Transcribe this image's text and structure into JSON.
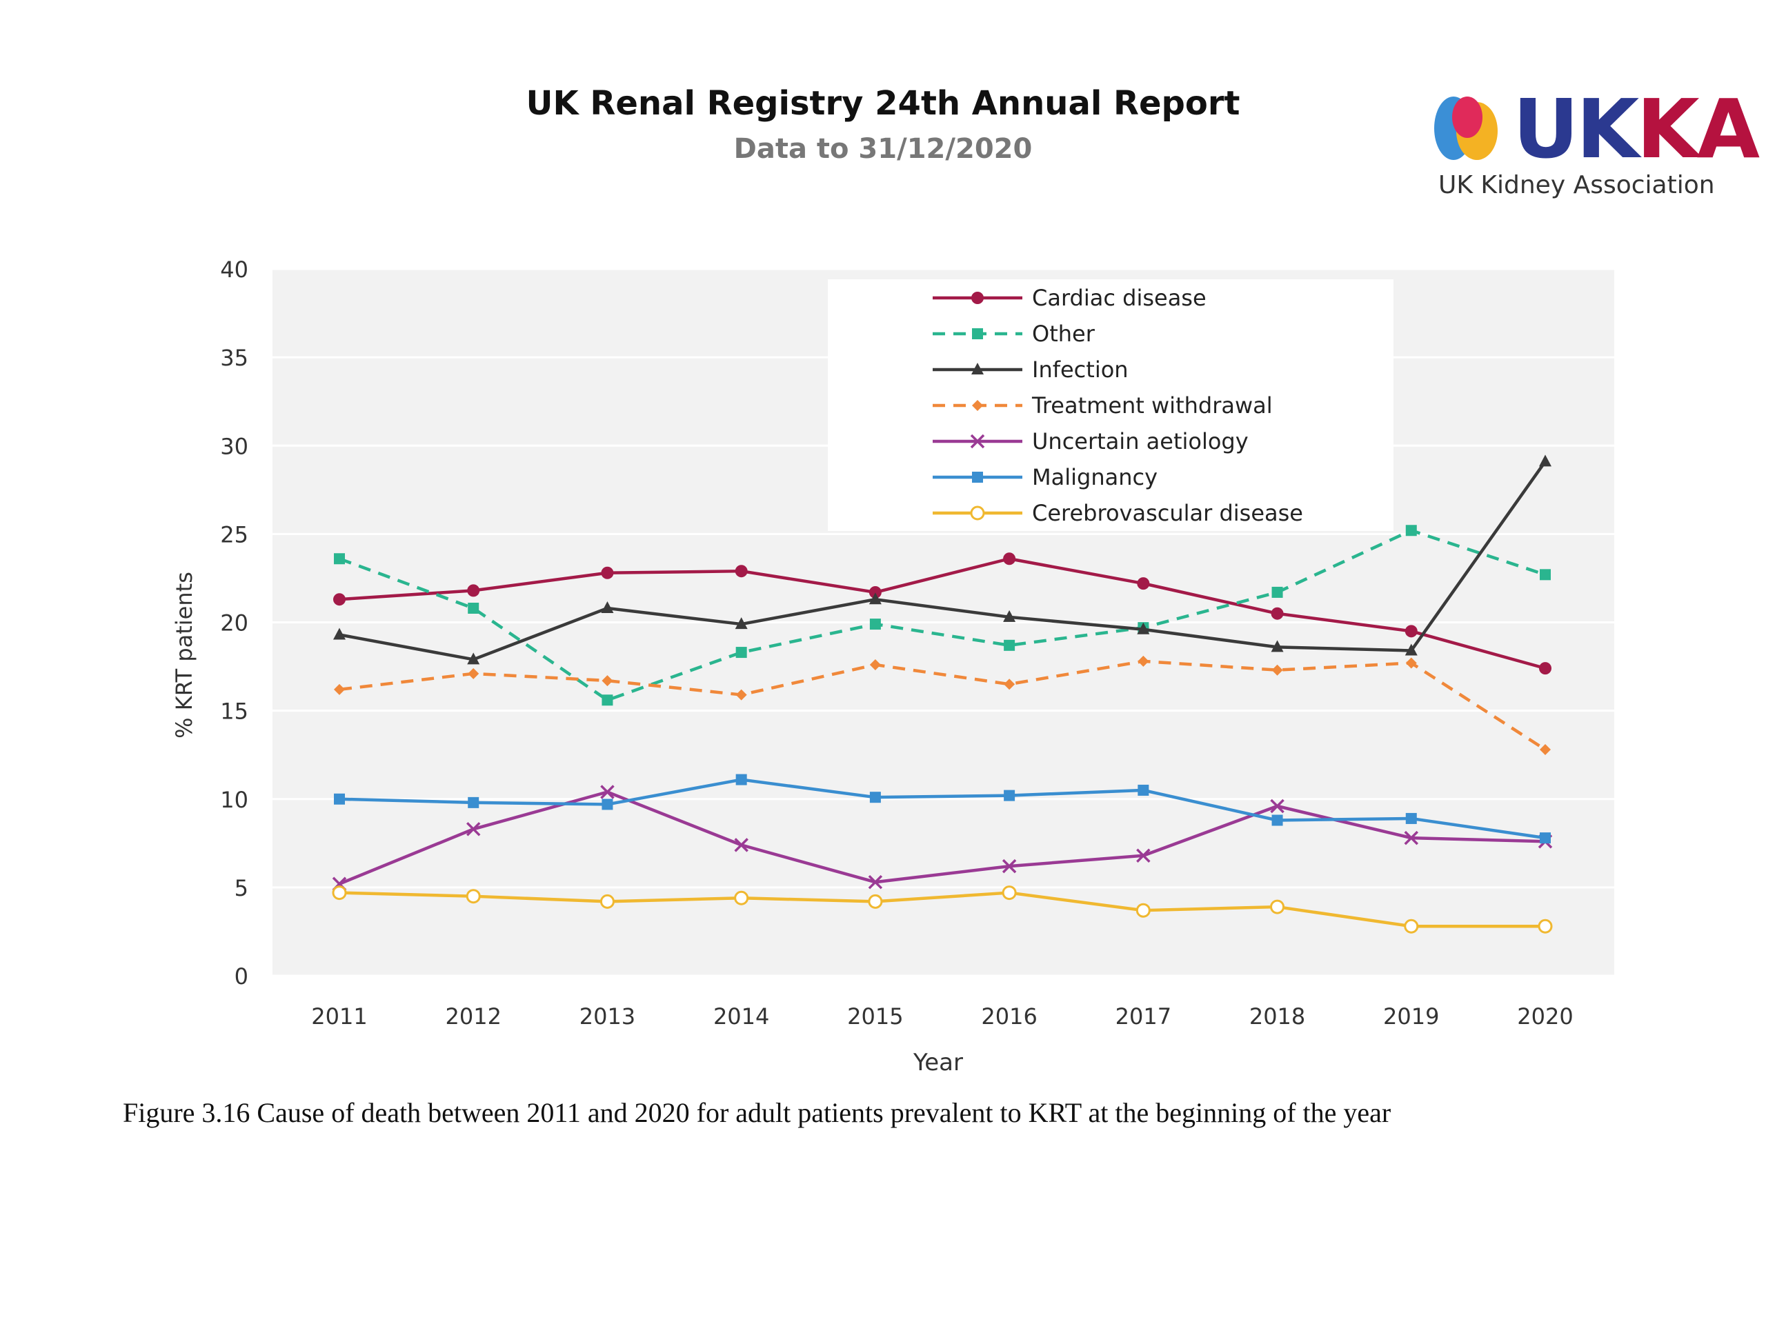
{
  "header": {
    "title": "UK Renal Registry 24th Annual Report",
    "subtitle": "Data to 31/12/2020"
  },
  "logo": {
    "word_uk": "UK",
    "word_ka": "KA",
    "tagline": "UK Kidney Association"
  },
  "caption": "Figure 3.16 Cause of death between 2011 and 2020 for adult patients prevalent to KRT at the beginning of the year",
  "chart_data": {
    "type": "line",
    "title": "",
    "xlabel": "Year",
    "ylabel": "% KRT patients",
    "x": [
      "2011",
      "2012",
      "2013",
      "2014",
      "2015",
      "2016",
      "2017",
      "2018",
      "2019",
      "2020"
    ],
    "yticks": [
      "0",
      "5",
      "10",
      "15",
      "20",
      "25",
      "30",
      "35",
      "40"
    ],
    "ylim": [
      0,
      40
    ],
    "grid": true,
    "legend_position": "top-center",
    "series": [
      {
        "name": "Cardiac disease",
        "color": "#a31a48",
        "dash": false,
        "marker": "circle",
        "values": [
          21.3,
          21.8,
          22.8,
          22.9,
          21.7,
          23.6,
          22.2,
          20.5,
          19.5,
          17.4
        ]
      },
      {
        "name": "Other",
        "color": "#2ab58f",
        "dash": true,
        "marker": "square",
        "values": [
          23.6,
          20.8,
          15.6,
          18.3,
          19.9,
          18.7,
          19.7,
          21.7,
          25.2,
          22.7
        ]
      },
      {
        "name": "Infection",
        "color": "#3a3a3a",
        "dash": false,
        "marker": "triangle",
        "values": [
          19.3,
          17.9,
          20.8,
          19.9,
          21.3,
          20.3,
          19.6,
          18.6,
          18.4,
          29.1
        ]
      },
      {
        "name": "Treatment withdrawal",
        "color": "#f0883a",
        "dash": true,
        "marker": "diamond",
        "values": [
          16.2,
          17.1,
          16.7,
          15.9,
          17.6,
          16.5,
          17.8,
          17.3,
          17.7,
          12.8
        ]
      },
      {
        "name": "Uncertain aetiology",
        "color": "#9a3a94",
        "dash": false,
        "marker": "x",
        "values": [
          5.2,
          8.3,
          10.4,
          7.4,
          5.3,
          6.2,
          6.8,
          9.6,
          7.8,
          7.6
        ]
      },
      {
        "name": "Malignancy",
        "color": "#3a8ed0",
        "dash": false,
        "marker": "square",
        "values": [
          10.0,
          9.8,
          9.7,
          11.1,
          10.1,
          10.2,
          10.5,
          8.8,
          8.9,
          7.8
        ]
      },
      {
        "name": "Cerebrovascular disease",
        "color": "#f0b830",
        "dash": false,
        "marker": "open-circle",
        "values": [
          4.7,
          4.5,
          4.2,
          4.4,
          4.2,
          4.7,
          3.7,
          3.9,
          2.8,
          2.8
        ]
      }
    ]
  }
}
